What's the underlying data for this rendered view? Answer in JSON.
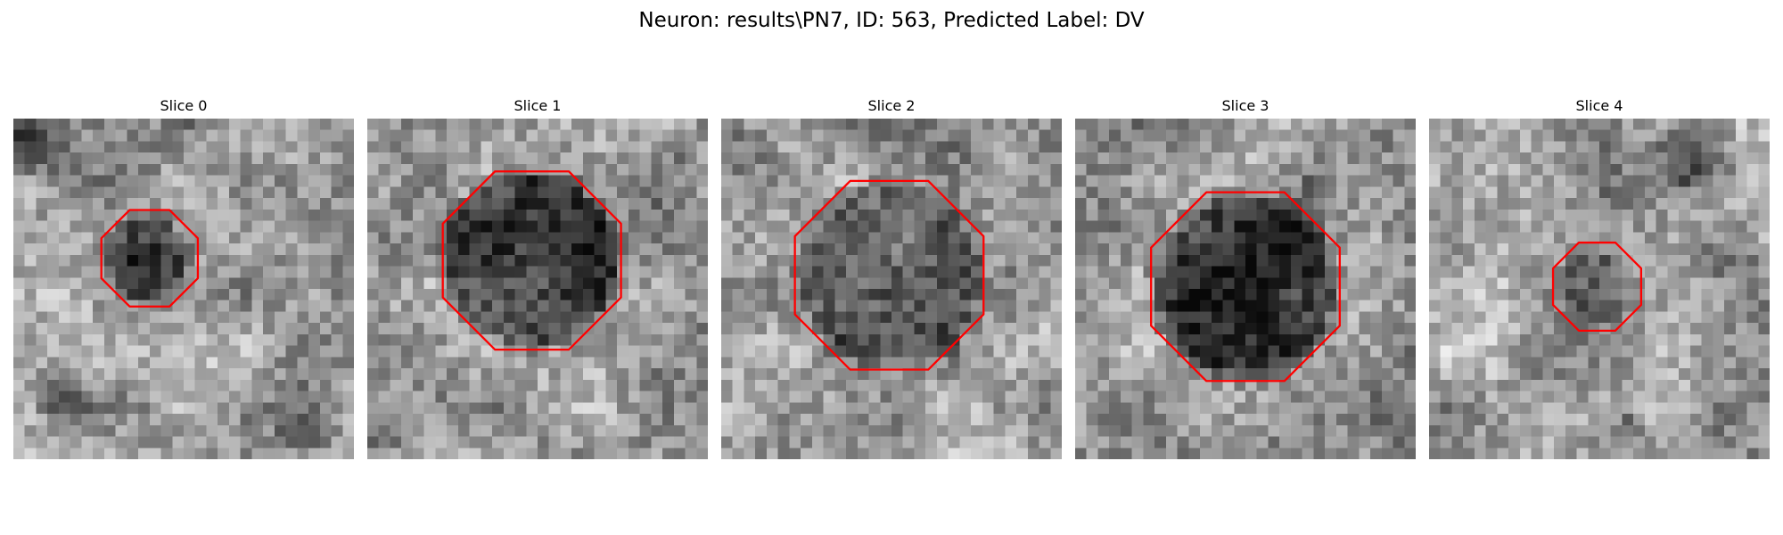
{
  "title": "Neuron: results\\PN7, ID: 563, Predicted Label: DV",
  "contour_color": "#ff0000",
  "slices": [
    {
      "label": "Slice 0"
    },
    {
      "label": "Slice 1"
    },
    {
      "label": "Slice 2"
    },
    {
      "label": "Slice 3"
    },
    {
      "label": "Slice 4"
    }
  ]
}
